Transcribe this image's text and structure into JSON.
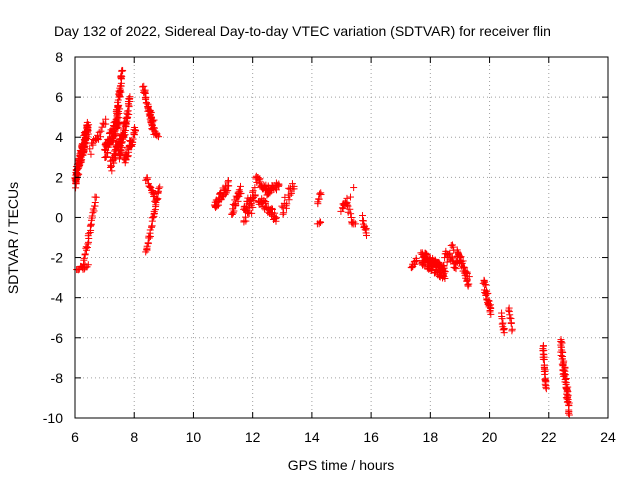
{
  "chart_data": {
    "type": "scatter",
    "title": "Day 132 of 2022, Sidereal Day-to-day VTEC variation (SDTVAR) for receiver flin",
    "xlabel": "GPS time / hours",
    "ylabel": "SDTVAR / TECUs",
    "xlim": [
      6,
      24
    ],
    "ylim": [
      -10,
      8
    ],
    "xticks": [
      "6",
      "8",
      "10",
      "12",
      "14",
      "16",
      "18",
      "20",
      "22",
      "24"
    ],
    "yticks": [
      "-10",
      "-8",
      "-6",
      "-4",
      "-2",
      "0",
      "2",
      "4",
      "6",
      "8"
    ],
    "grid": true,
    "marker": "+",
    "color": "#ff0000",
    "series": [
      {
        "name": "SDTVAR",
        "segments": [
          {
            "x": [
              6.0,
              6.45
            ],
            "y": [
              1.8,
              4.6
            ],
            "n": 150,
            "jitter": 0.35
          },
          {
            "x": [
              6.05,
              6.45
            ],
            "y": [
              -2.6,
              -2.4
            ],
            "n": 14,
            "jitter": 0.1
          },
          {
            "x": [
              6.3,
              6.7
            ],
            "y": [
              -2.3,
              1.0
            ],
            "n": 30,
            "jitter": 0.15
          },
          {
            "x": [
              6.5,
              6.75
            ],
            "y": [
              3.3,
              4.2
            ],
            "n": 10,
            "jitter": 0.25
          },
          {
            "x": [
              6.75,
              7.05
            ],
            "y": [
              3.8,
              5.1
            ],
            "n": 10,
            "jitter": 0.3
          },
          {
            "x": [
              7.0,
              7.5
            ],
            "y": [
              3.2,
              5.0
            ],
            "n": 80,
            "jitter": 0.45
          },
          {
            "x": [
              7.2,
              7.55
            ],
            "y": [
              2.5,
              4.0
            ],
            "n": 40,
            "jitter": 0.35
          },
          {
            "x": [
              7.4,
              7.6
            ],
            "y": [
              5.0,
              7.3
            ],
            "n": 40,
            "jitter": 0.3
          },
          {
            "x": [
              7.5,
              7.85
            ],
            "y": [
              3.0,
              5.8
            ],
            "n": 60,
            "jitter": 0.4
          },
          {
            "x": [
              7.65,
              8.05
            ],
            "y": [
              2.8,
              4.3
            ],
            "n": 35,
            "jitter": 0.3
          },
          {
            "x": [
              8.3,
              8.65
            ],
            "y": [
              6.5,
              4.3
            ],
            "n": 40,
            "jitter": 0.2
          },
          {
            "x": [
              8.5,
              8.8
            ],
            "y": [
              5.5,
              3.9
            ],
            "n": 25,
            "jitter": 0.2
          },
          {
            "x": [
              8.4,
              8.75
            ],
            "y": [
              2.0,
              0.8
            ],
            "n": 20,
            "jitter": 0.15
          },
          {
            "x": [
              8.4,
              8.85
            ],
            "y": [
              -1.8,
              1.5
            ],
            "n": 35,
            "jitter": 0.15
          },
          {
            "x": [
              10.7,
              11.2
            ],
            "y": [
              0.5,
              1.7
            ],
            "n": 40,
            "jitter": 0.25
          },
          {
            "x": [
              11.3,
              11.6
            ],
            "y": [
              0.2,
              1.4
            ],
            "n": 25,
            "jitter": 0.25
          },
          {
            "x": [
              11.7,
              12.1
            ],
            "y": [
              0.3,
              1.3
            ],
            "n": 25,
            "jitter": 0.3
          },
          {
            "x": [
              11.7,
              12.0
            ],
            "y": [
              -0.2,
              0.5
            ],
            "n": 12,
            "jitter": 0.2
          },
          {
            "x": [
              12.1,
              12.6
            ],
            "y": [
              1.9,
              1.3
            ],
            "n": 30,
            "jitter": 0.2
          },
          {
            "x": [
              12.2,
              12.8
            ],
            "y": [
              0.9,
              0.0
            ],
            "n": 40,
            "jitter": 0.25
          },
          {
            "x": [
              12.5,
              12.9
            ],
            "y": [
              1.3,
              1.6
            ],
            "n": 20,
            "jitter": 0.2
          },
          {
            "x": [
              13.0,
              13.4
            ],
            "y": [
              0.3,
              1.8
            ],
            "n": 20,
            "jitter": 0.4
          },
          {
            "x": [
              14.2,
              14.3
            ],
            "y": [
              0.7,
              1.2
            ],
            "n": 8,
            "jitter": 0.15
          },
          {
            "x": [
              14.2,
              14.3
            ],
            "y": [
              -0.4,
              -0.2
            ],
            "n": 4,
            "jitter": 0.1
          },
          {
            "x": [
              15.0,
              15.2
            ],
            "y": [
              0.4,
              0.8
            ],
            "n": 12,
            "jitter": 0.2
          },
          {
            "x": [
              15.2,
              15.45
            ],
            "y": [
              0.5,
              -0.5
            ],
            "n": 12,
            "jitter": 0.2
          },
          {
            "x": [
              15.3,
              15.4
            ],
            "y": [
              1.0,
              1.5
            ],
            "n": 2,
            "jitter": 0.05
          },
          {
            "x": [
              15.7,
              15.85
            ],
            "y": [
              0.0,
              -0.9
            ],
            "n": 12,
            "jitter": 0.2
          },
          {
            "x": [
              17.35,
              17.55
            ],
            "y": [
              -2.5,
              -2.1
            ],
            "n": 12,
            "jitter": 0.15
          },
          {
            "x": [
              17.7,
              18.5
            ],
            "y": [
              -2.0,
              -2.8
            ],
            "n": 120,
            "jitter": 0.35
          },
          {
            "x": [
              18.5,
              18.9
            ],
            "y": [
              -1.8,
              -2.5
            ],
            "n": 25,
            "jitter": 0.3
          },
          {
            "x": [
              18.7,
              18.8
            ],
            "y": [
              -1.3,
              -1.6
            ],
            "n": 4,
            "jitter": 0.1
          },
          {
            "x": [
              18.9,
              19.3
            ],
            "y": [
              -1.7,
              -3.2
            ],
            "n": 40,
            "jitter": 0.3
          },
          {
            "x": [
              19.8,
              20.05
            ],
            "y": [
              -3.2,
              -4.7
            ],
            "n": 30,
            "jitter": 0.25
          },
          {
            "x": [
              20.4,
              20.5
            ],
            "y": [
              -4.9,
              -5.8
            ],
            "n": 10,
            "jitter": 0.15
          },
          {
            "x": [
              20.65,
              20.75
            ],
            "y": [
              -4.4,
              -5.7
            ],
            "n": 10,
            "jitter": 0.15
          },
          {
            "x": [
              21.8,
              21.9
            ],
            "y": [
              -6.4,
              -8.5
            ],
            "n": 30,
            "jitter": 0.2
          },
          {
            "x": [
              22.4,
              22.7
            ],
            "y": [
              -6.3,
              -9.6
            ],
            "n": 70,
            "jitter": 0.45
          }
        ]
      }
    ]
  }
}
